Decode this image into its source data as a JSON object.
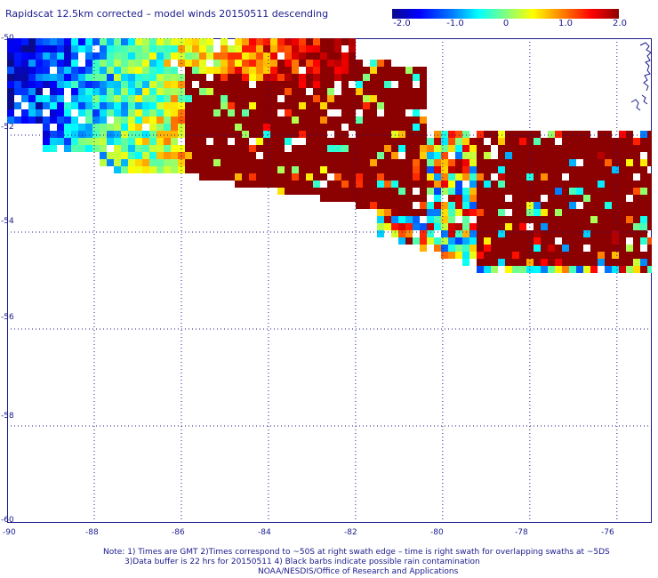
{
  "title": "Rapidscat 12.5km corrected – model winds 20150511 descending",
  "colorbar": {
    "ticks": [
      "-2.0",
      "-1.0",
      "0",
      "1.0",
      "2.0"
    ],
    "range": [
      -2.0,
      2.0
    ]
  },
  "map": {
    "lon_range": [
      -90,
      -75.2
    ],
    "lat_range": [
      -60,
      -50
    ],
    "lat_labels": [
      "-50",
      "-52",
      "-54",
      "-56",
      "-58",
      "-60"
    ],
    "lon_labels": [
      "-90",
      "-88",
      "-86",
      "-84",
      "-82",
      "-80",
      "-78",
      "-76"
    ],
    "grid": true,
    "coastline_color": "#1a1a8c"
  },
  "notes": {
    "line1": "Note: 1) Times are GMT 2)Times correspond to ~50S at right swath edge – time is right swath for overlapping swaths at ~5DS",
    "line2": "3)Data buffer is 22 hrs for 20150511 4) Black barbs indicate possible rain contamination",
    "line3": "NOAA/NESDIS/Office of Research and Applications"
  }
}
